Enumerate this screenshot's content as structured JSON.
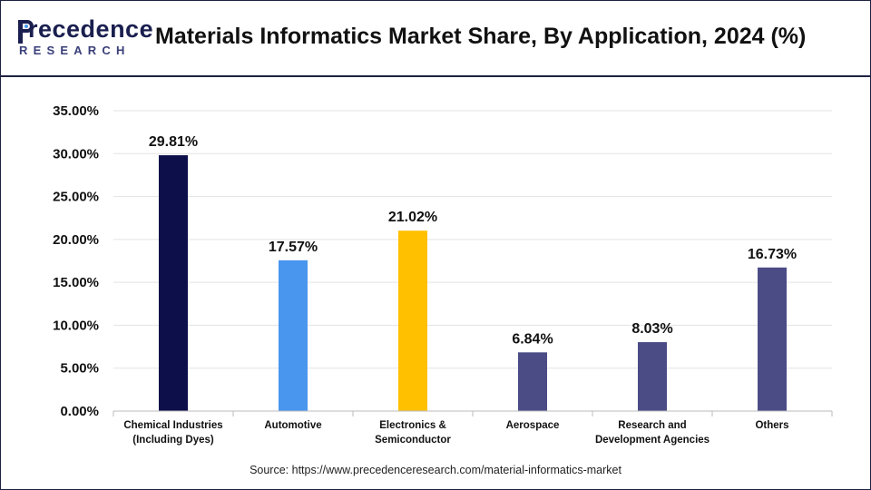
{
  "header": {
    "logo_word": "recedence",
    "logo_sub": "RESEARCH",
    "title": "Materials Informatics Market Share, By Application, 2024 (%)"
  },
  "source": "Source: https://www.precedenceresearch.com/material-informatics-market",
  "chart_data": {
    "type": "bar",
    "title": "Materials Informatics Market Share, By Application, 2024 (%)",
    "categories": [
      [
        "Chemical Industries",
        "(Including Dyes)"
      ],
      [
        "Automotive"
      ],
      [
        "Electronics &",
        "Semiconductor"
      ],
      [
        "Aerospace"
      ],
      [
        "Research and",
        "Development Agencies"
      ],
      [
        "Others"
      ]
    ],
    "values": [
      29.81,
      17.57,
      21.02,
      6.84,
      8.03,
      16.73
    ],
    "value_labels": [
      "29.81%",
      "17.57%",
      "21.02%",
      "6.84%",
      "8.03%",
      "16.73%"
    ],
    "colors": [
      "#0c0f4a",
      "#4996ef",
      "#ffc000",
      "#4b4c86",
      "#4b4c86",
      "#4b4c86"
    ],
    "yticks": [
      "0.00%",
      "5.00%",
      "10.00%",
      "15.00%",
      "20.00%",
      "25.00%",
      "30.00%",
      "35.00%"
    ],
    "ylim": [
      0,
      35
    ],
    "grid": true,
    "xlabel": "",
    "ylabel": ""
  }
}
